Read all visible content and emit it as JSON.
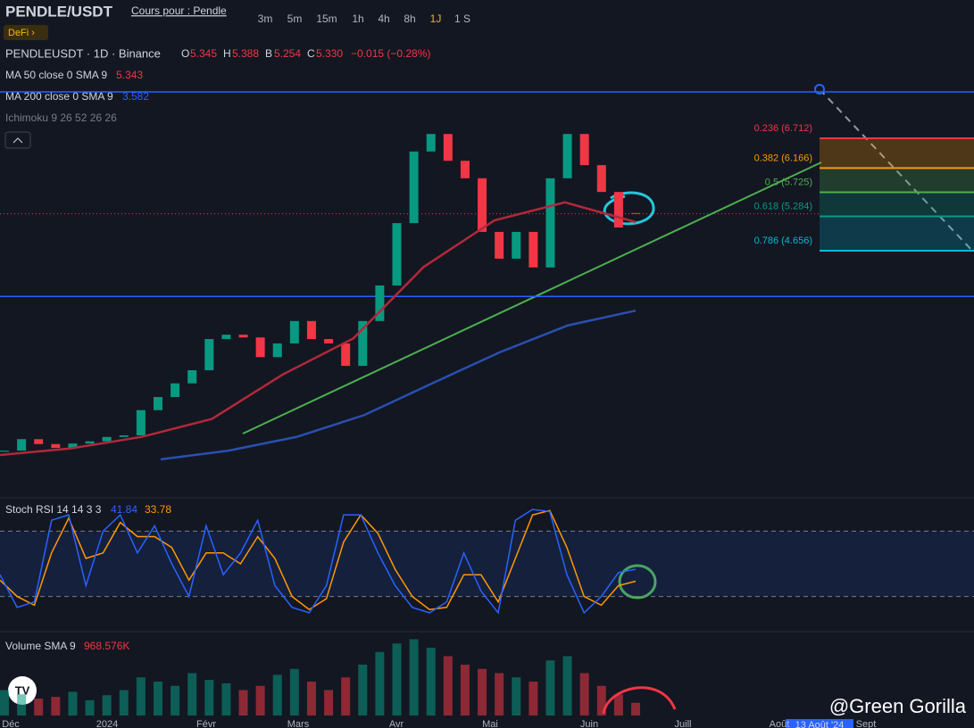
{
  "header": {
    "symbol": "PENDLE/USDT",
    "link": "Cours pour : Pendle",
    "tag": "DeFi ›",
    "timeframes": [
      "3m",
      "5m",
      "15m",
      "1h",
      "4h",
      "8h",
      "1J",
      "1 S"
    ]
  },
  "legend": {
    "title": "PENDLEUSDT · 1D · Binance",
    "ohlc": [
      {
        "k": "O",
        "v": "5.345"
      },
      {
        "k": "H",
        "v": "5.388"
      },
      {
        "k": "B",
        "v": "5.254"
      },
      {
        "k": "C",
        "v": "5.330"
      }
    ],
    "change": "−0.015 (−0.28%)"
  },
  "indicators": [
    {
      "name": "MA 50 close 0 SMA 9",
      "value": "5.343"
    },
    {
      "name": "MA 200 close 0 SMA 9",
      "value": "3.582"
    },
    {
      "name": "Ichimoku 9 26 52 26 26"
    }
  ],
  "price_chart": {
    "open": [
      0.98,
      1.0,
      1.21,
      1.12,
      1.05,
      1.13,
      1.17,
      1.25,
      1.28,
      1.74,
      1.98,
      2.23,
      2.47,
      3.04,
      3.12,
      3.07,
      2.71,
      2.96,
      3.37,
      3.04,
      2.96,
      2.55,
      3.37,
      4.02,
      5.16,
      6.47,
      6.79,
      6.3,
      5.98,
      5.0,
      4.51,
      5.0,
      4.35,
      5.98,
      6.79,
      6.22,
      5.73,
      5.345
    ],
    "close": [
      1.0,
      1.21,
      1.12,
      1.05,
      1.13,
      1.17,
      1.25,
      1.28,
      1.74,
      1.98,
      2.23,
      2.47,
      3.04,
      3.12,
      3.07,
      2.71,
      2.96,
      3.37,
      3.04,
      2.96,
      2.55,
      3.37,
      4.02,
      5.16,
      6.47,
      6.79,
      6.3,
      5.98,
      5.0,
      4.51,
      5.0,
      4.35,
      5.98,
      6.79,
      6.22,
      5.73,
      5.08,
      5.33
    ],
    "ma50": [
      0.92,
      1.04,
      1.25,
      1.58,
      2.39,
      3.05,
      4.36,
      5.21,
      5.54,
      5.18
    ],
    "ma200": [
      0.84,
      1.0,
      1.25,
      1.65,
      2.23,
      2.8,
      3.29,
      3.56
    ],
    "levels": [
      7.56,
      3.82
    ],
    "fib": [
      {
        "label": "0.236 (6.712)",
        "price": 6.712
      },
      {
        "label": "0.382 (6.166)",
        "price": 6.166
      },
      {
        "label": "0.5 (5.725)",
        "price": 5.725
      },
      {
        "label": "0.618 (5.284)",
        "price": 5.284
      },
      {
        "label": "0.786 (4.656)",
        "price": 4.656
      }
    ]
  },
  "stoch": {
    "title": "Stoch RSI 14 14 3 3",
    "k_label": "41.84",
    "d_label": "33.78",
    "bands": [
      80,
      20
    ],
    "k": [
      40,
      10,
      15,
      90,
      95,
      30,
      80,
      95,
      60,
      85,
      50,
      20,
      85,
      40,
      60,
      90,
      30,
      10,
      5,
      30,
      95,
      95,
      60,
      30,
      10,
      5,
      15,
      60,
      25,
      5,
      90,
      100,
      98,
      40,
      5,
      20,
      42,
      45
    ],
    "d": [
      35,
      20,
      12,
      60,
      92,
      55,
      60,
      88,
      75,
      75,
      65,
      35,
      60,
      60,
      50,
      75,
      55,
      20,
      8,
      18,
      70,
      95,
      78,
      45,
      20,
      8,
      10,
      40,
      40,
      15,
      55,
      95,
      99,
      65,
      20,
      12,
      30,
      34
    ]
  },
  "volume": {
    "title": "Volume SMA 9",
    "value": "968.576K",
    "values": [
      30,
      25,
      20,
      22,
      28,
      18,
      24,
      30,
      45,
      40,
      35,
      50,
      42,
      38,
      30,
      35,
      48,
      55,
      40,
      30,
      45,
      60,
      75,
      85,
      90,
      80,
      70,
      60,
      55,
      50,
      45,
      40,
      65,
      70,
      50,
      35,
      25,
      15
    ]
  },
  "time_axis": [
    "Déc",
    "2024",
    "Févr",
    "Mars",
    "Avr",
    "Mai",
    "Juin",
    "Juill",
    "Août",
    "Sept"
  ],
  "cursor_label": "13 Août '24",
  "watermark": "@Green Gorilla"
}
